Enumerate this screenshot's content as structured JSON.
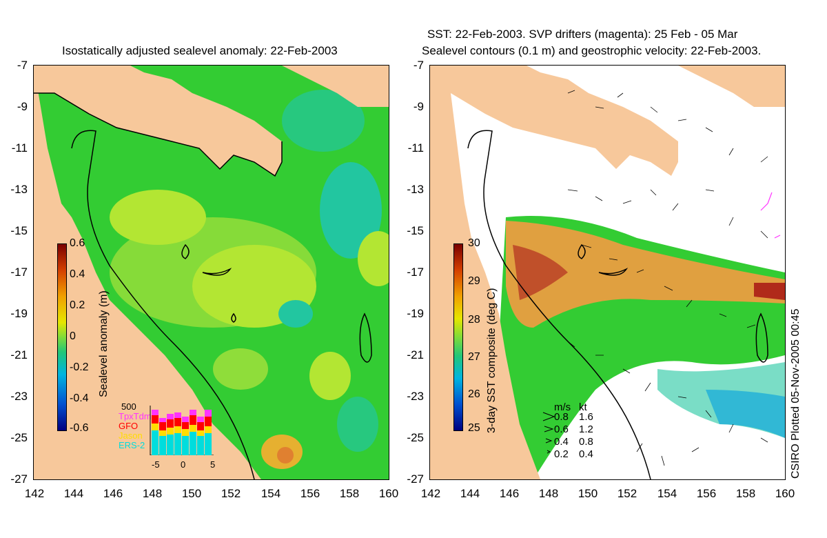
{
  "left": {
    "title": "Isostatically adjusted sealevel anomaly: 22-Feb-2003",
    "colorbar_label": "Sealevel anomaly (m)",
    "colorbar_ticks": [
      "0.6",
      "0.4",
      "0.2",
      "0",
      "-0.2",
      "-0.4",
      "-0.6"
    ],
    "inset": {
      "top_value": "500",
      "satellites": [
        "TpxTdm",
        "GFO",
        "Jason",
        "ERS-2"
      ],
      "satellite_colors": [
        "#ff33ff",
        "#ff0000",
        "#ffdd00",
        "#00dddd"
      ],
      "x_ticks": [
        "-5",
        "0",
        "5"
      ]
    }
  },
  "right": {
    "title_line1": "SST: 22-Feb-2003. SVP drifters (magenta): 25 Feb - 05 Mar",
    "title_line2": "Sealevel contours (0.1 m) and geostrophic velocity: 22-Feb-2003.",
    "colorbar_label": "3-day SST composite (deg C)",
    "colorbar_ticks": [
      "30",
      "29",
      "28",
      "27",
      "26",
      "25"
    ],
    "speed_legend": {
      "header_ms": "m/s",
      "header_kt": "kt",
      "rows": [
        {
          "ms": "0.8",
          "kt": "1.6"
        },
        {
          "ms": "0.6",
          "kt": "1.2"
        },
        {
          "ms": "0.4",
          "kt": "0.8"
        },
        {
          "ms": "0.2",
          "kt": "0.4"
        }
      ]
    },
    "credit": "CSIRO Plotted 05-Nov-2005 00:45"
  },
  "axes": {
    "y_ticks": [
      "-7",
      "-9",
      "-11",
      "-13",
      "-15",
      "-17",
      "-19",
      "-21",
      "-23",
      "-25",
      "-27"
    ],
    "x_ticks": [
      "142",
      "144",
      "146",
      "148",
      "150",
      "152",
      "154",
      "156",
      "158",
      "160"
    ]
  },
  "colors": {
    "land": "#f7c89b",
    "ocean_green": "#33cc33",
    "anomaly_positive": "#b3e633",
    "anomaly_negative": "#22c6a0",
    "sst_warm": "#e0883a",
    "sst_hot": "#b02a1a"
  }
}
